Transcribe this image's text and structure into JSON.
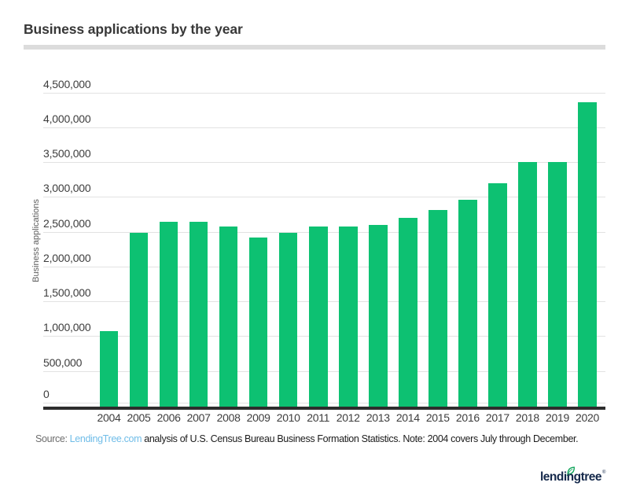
{
  "header": {
    "title": "Business applications by the year"
  },
  "footer": {
    "source_prefix": "Source:",
    "source_link": "LendingTree.com",
    "source_rest": "analysis of U.S. Census Bureau Business Formation Statistics. Note: 2004 covers July through December."
  },
  "logo": {
    "wordmark": "lendingtree",
    "trademark": "®"
  },
  "colors": {
    "bar_green": "#0dc172",
    "link_blue": "#70bde8",
    "logo_navy": "#15294b",
    "leaf_green": "#14a65e",
    "gridline_gray": "#e2e2e2",
    "axis_dark": "#2d2d2d"
  },
  "chart_data": {
    "type": "bar",
    "title": "Business applications by the year",
    "xlabel": "",
    "ylabel": "Business applications",
    "categories": [
      "2004",
      "2005",
      "2006",
      "2007",
      "2008",
      "2009",
      "2010",
      "2011",
      "2012",
      "2013",
      "2014",
      "2015",
      "2016",
      "2017",
      "2018",
      "2019",
      "2020"
    ],
    "values": [
      1070000,
      2490000,
      2640000,
      2640000,
      2580000,
      2420000,
      2490000,
      2580000,
      2580000,
      2600000,
      2700000,
      2810000,
      2960000,
      3200000,
      3500000,
      3500000,
      4360000
    ],
    "ylim": [
      0,
      4500000
    ],
    "ytick_step": 500000,
    "ytick_labels": [
      "0",
      "500,000",
      "1,000,000",
      "1,500,000",
      "2,000,000",
      "2,500,000",
      "3,000,000",
      "3,500,000",
      "4,000,000",
      "4,500,000"
    ],
    "grid": true,
    "legend": false,
    "bar_color": "#0dc172",
    "note": "2004 covers July through December"
  }
}
